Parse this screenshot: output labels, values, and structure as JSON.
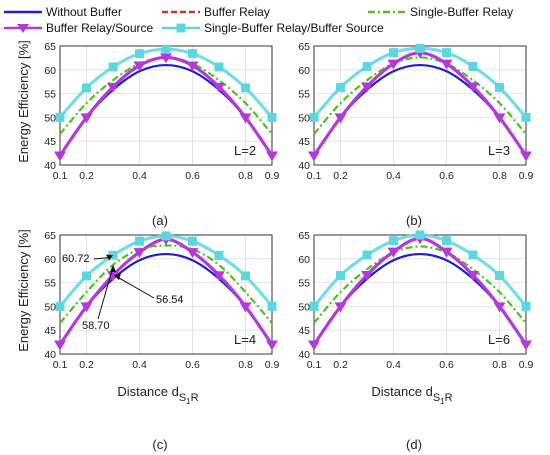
{
  "legend": [
    {
      "name": "Without Buffer",
      "color": "#1f1fcc",
      "style": "solid"
    },
    {
      "name": "Buffer Relay",
      "color": "#c0392b",
      "style": "dashed"
    },
    {
      "name": "Single-Buffer Relay",
      "color": "#4cc21a",
      "style": "dashdot"
    },
    {
      "name": "Buffer Relay/Source",
      "color": "#b23ad9",
      "style": "solid-triangle"
    },
    {
      "name": "Single-Buffer Relay/Buffer Source",
      "color": "#5cd6e0",
      "style": "solid-square"
    }
  ],
  "chart_data": [
    {
      "type": "line",
      "caption": "(a)",
      "tag": "L=2",
      "xlabel": "",
      "ylabel": "Energy Efficiency [%]",
      "xlim": [
        0.1,
        0.9
      ],
      "ylim": [
        40,
        65
      ],
      "xticks": [
        "0.1",
        "0.2",
        "0.4",
        "0.6",
        "0.8",
        "0.9"
      ],
      "yticks": [
        "40",
        "45",
        "50",
        "55",
        "60",
        "65"
      ],
      "x": [
        0.1,
        0.2,
        0.3,
        0.4,
        0.5,
        0.6,
        0.7,
        0.8,
        0.9
      ],
      "series": [
        {
          "name": "Without Buffer",
          "values": [
            42.0,
            50.0,
            55.8,
            59.7,
            61.0,
            59.7,
            55.8,
            50.0,
            42.0
          ]
        },
        {
          "name": "Buffer Relay",
          "values": [
            42.0,
            50.0,
            56.4,
            60.8,
            62.5,
            60.8,
            56.4,
            50.0,
            42.0
          ]
        },
        {
          "name": "Single-Buffer Relay",
          "values": [
            46.5,
            53.0,
            57.8,
            61.3,
            62.6,
            61.3,
            57.8,
            53.0,
            46.5
          ]
        },
        {
          "name": "Buffer Relay/Source",
          "values": [
            42.0,
            50.0,
            56.4,
            60.9,
            62.6,
            60.9,
            56.4,
            50.0,
            42.0
          ]
        },
        {
          "name": "Single-Buffer Relay/Buffer Source",
          "values": [
            50.0,
            56.2,
            60.6,
            63.4,
            64.3,
            63.4,
            60.6,
            56.2,
            50.0
          ]
        }
      ]
    },
    {
      "type": "line",
      "caption": "(b)",
      "tag": "L=3",
      "xlabel": "",
      "ylabel": "",
      "xlim": [
        0.1,
        0.9
      ],
      "ylim": [
        40,
        65
      ],
      "xticks": [
        "0.1",
        "0.2",
        "0.4",
        "0.6",
        "0.8",
        "0.9"
      ],
      "yticks": [
        "40",
        "45",
        "50",
        "55",
        "60",
        "65"
      ],
      "x": [
        0.1,
        0.2,
        0.3,
        0.4,
        0.5,
        0.6,
        0.7,
        0.8,
        0.9
      ],
      "series": [
        {
          "name": "Without Buffer",
          "values": [
            42.0,
            50.0,
            55.8,
            59.7,
            61.0,
            59.7,
            55.8,
            50.0,
            42.0
          ]
        },
        {
          "name": "Buffer Relay",
          "values": [
            42.0,
            50.0,
            56.5,
            61.2,
            63.5,
            61.2,
            56.5,
            50.0,
            42.0
          ]
        },
        {
          "name": "Single-Buffer Relay",
          "values": [
            46.5,
            53.0,
            57.8,
            61.3,
            62.6,
            61.3,
            57.8,
            53.0,
            46.5
          ]
        },
        {
          "name": "Buffer Relay/Source",
          "values": [
            42.0,
            50.0,
            56.5,
            61.3,
            63.6,
            61.3,
            56.5,
            50.0,
            42.0
          ]
        },
        {
          "name": "Single-Buffer Relay/Buffer Source",
          "values": [
            50.0,
            56.3,
            60.7,
            63.6,
            64.5,
            63.6,
            60.7,
            56.3,
            50.0
          ]
        }
      ]
    },
    {
      "type": "line",
      "caption": "(c)",
      "tag": "L=4",
      "xlabel": "Distance d",
      "xlabel_sub": "S",
      "xlabel_sub2": "1",
      "xlabel_sub3": "R",
      "ylabel": "Energy Efficiency [%]",
      "xlim": [
        0.1,
        0.9
      ],
      "ylim": [
        40,
        65
      ],
      "xticks": [
        "0.1",
        "0.2",
        "0.4",
        "0.6",
        "0.8",
        "0.9"
      ],
      "yticks": [
        "40",
        "45",
        "50",
        "55",
        "60",
        "65"
      ],
      "x": [
        0.1,
        0.2,
        0.3,
        0.4,
        0.5,
        0.6,
        0.7,
        0.8,
        0.9
      ],
      "annotations": [
        "60.72",
        "56.54",
        "58.70"
      ],
      "series": [
        {
          "name": "Without Buffer",
          "values": [
            42.0,
            50.0,
            55.8,
            59.7,
            61.0,
            59.7,
            55.8,
            50.0,
            42.0
          ]
        },
        {
          "name": "Buffer Relay",
          "values": [
            42.0,
            50.0,
            56.5,
            61.3,
            64.0,
            61.3,
            56.5,
            50.0,
            42.0
          ]
        },
        {
          "name": "Single-Buffer Relay",
          "values": [
            46.5,
            53.0,
            58.7,
            62.0,
            62.8,
            62.0,
            58.7,
            53.0,
            46.5
          ]
        },
        {
          "name": "Buffer Relay/Source",
          "values": [
            42.0,
            50.0,
            56.54,
            61.4,
            64.1,
            61.4,
            56.54,
            50.0,
            42.0
          ]
        },
        {
          "name": "Single-Buffer Relay/Buffer Source",
          "values": [
            50.0,
            56.4,
            60.72,
            63.7,
            64.8,
            63.7,
            60.72,
            56.4,
            50.0
          ]
        }
      ]
    },
    {
      "type": "line",
      "caption": "(d)",
      "tag": "L=6",
      "xlabel": "Distance d",
      "xlabel_sub": "S",
      "xlabel_sub2": "1",
      "xlabel_sub3": "R",
      "ylabel": "",
      "xlim": [
        0.1,
        0.9
      ],
      "ylim": [
        40,
        65
      ],
      "xticks": [
        "0.1",
        "0.2",
        "0.4",
        "0.6",
        "0.8",
        "0.9"
      ],
      "yticks": [
        "40",
        "45",
        "50",
        "55",
        "60",
        "65"
      ],
      "x": [
        0.1,
        0.2,
        0.3,
        0.4,
        0.5,
        0.6,
        0.7,
        0.8,
        0.9
      ],
      "series": [
        {
          "name": "Without Buffer",
          "values": [
            42.0,
            50.0,
            55.8,
            59.7,
            61.0,
            59.7,
            55.8,
            50.0,
            42.0
          ]
        },
        {
          "name": "Buffer Relay",
          "values": [
            42.0,
            50.0,
            56.5,
            61.4,
            64.2,
            61.4,
            56.5,
            50.0,
            42.0
          ]
        },
        {
          "name": "Single-Buffer Relay",
          "values": [
            46.5,
            53.0,
            57.8,
            61.3,
            62.6,
            61.3,
            57.8,
            53.0,
            46.5
          ]
        },
        {
          "name": "Buffer Relay/Source",
          "values": [
            42.0,
            50.0,
            56.6,
            61.5,
            64.3,
            61.5,
            56.6,
            50.0,
            42.0
          ]
        },
        {
          "name": "Single-Buffer Relay/Buffer Source",
          "values": [
            50.0,
            56.5,
            60.8,
            63.8,
            65.0,
            63.8,
            60.8,
            56.5,
            50.0
          ]
        }
      ]
    }
  ]
}
